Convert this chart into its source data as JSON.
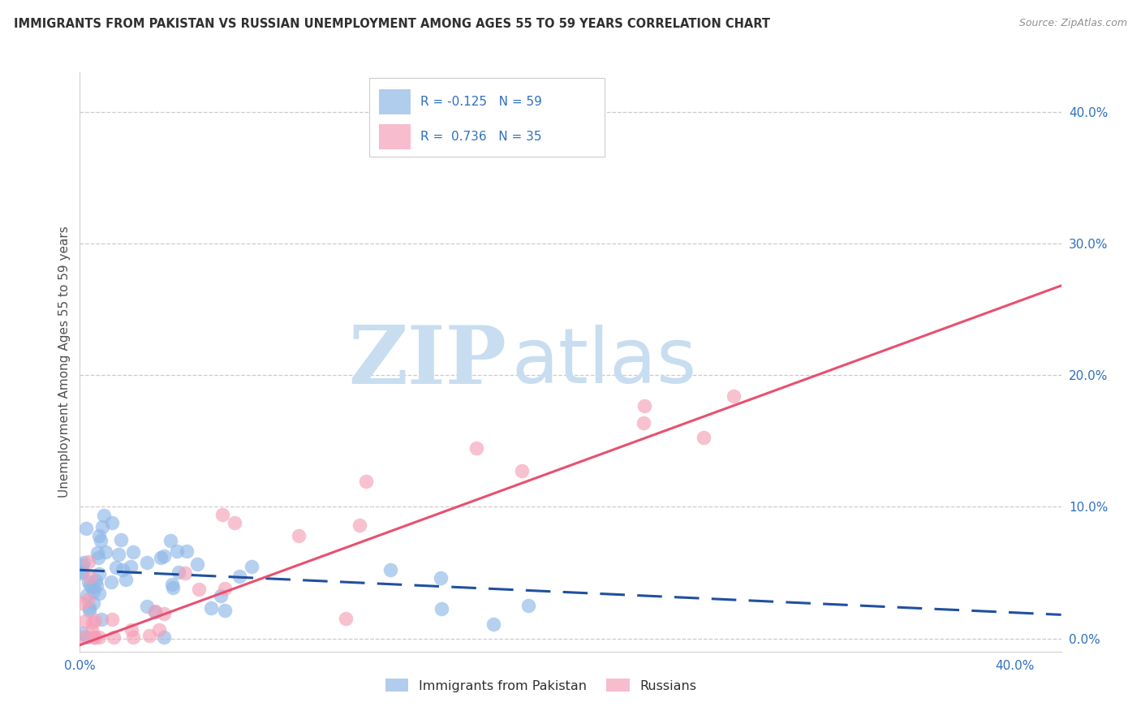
{
  "title": "IMMIGRANTS FROM PAKISTAN VS RUSSIAN UNEMPLOYMENT AMONG AGES 55 TO 59 YEARS CORRELATION CHART",
  "source": "Source: ZipAtlas.com",
  "ylabel": "Unemployment Among Ages 55 to 59 years",
  "xlim": [
    0.0,
    0.42
  ],
  "ylim": [
    -0.01,
    0.43
  ],
  "xtick_vals": [
    0.0,
    0.05,
    0.1,
    0.15,
    0.2,
    0.25,
    0.3,
    0.35,
    0.4
  ],
  "xtick_labels": [
    "0.0%",
    "",
    "",
    "",
    "",
    "",
    "",
    "",
    "40.0%"
  ],
  "ytick_vals": [
    0.0,
    0.1,
    0.2,
    0.3,
    0.4
  ],
  "ytick_labels": [
    "0.0%",
    "10.0%",
    "20.0%",
    "30.0%",
    "40.0%"
  ],
  "blue_trend_y_start": 0.052,
  "blue_trend_y_end": 0.018,
  "pink_trend_y_start": -0.005,
  "pink_trend_y_end": 0.268,
  "watermark_zip": "ZIP",
  "watermark_atlas": "atlas",
  "watermark_color": "#c8ddf0",
  "blue_color": "#90b8e8",
  "pink_color": "#f4a0b8",
  "blue_trend_color": "#2050a0",
  "pink_trend_color": "#e85070",
  "title_color": "#303030",
  "source_color": "#909090",
  "axis_label_color": "#505050",
  "tick_color": "#3070c0",
  "grid_color": "#cccccc",
  "background_color": "#ffffff",
  "legend_text_color": "#3070c0",
  "legend_label_color": "#303030"
}
